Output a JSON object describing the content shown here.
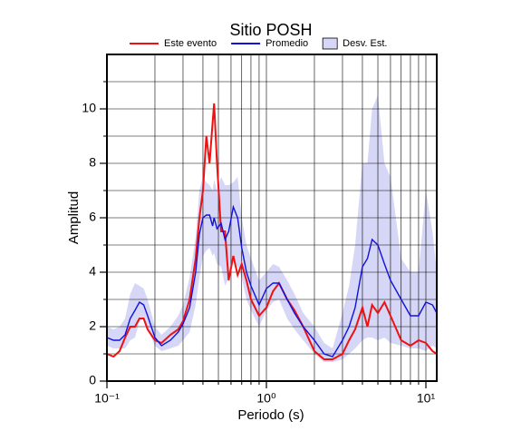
{
  "chart_data": {
    "type": "line",
    "title": "Sitio POSH",
    "x_label": "Periodo (s)",
    "y_label": "Amplitud",
    "xscale": "log",
    "xlim": [
      0.1,
      11.7
    ],
    "ylim": [
      0,
      12
    ],
    "xticks": [
      {
        "value": 0.1,
        "label": "10⁻¹"
      },
      {
        "value": 1,
        "label": "10⁰"
      },
      {
        "value": 10,
        "label": "10¹"
      }
    ],
    "xminorticks": [
      0.2,
      0.3,
      0.4,
      0.5,
      0.6,
      0.7,
      0.8,
      0.9,
      2,
      3,
      4,
      5,
      6,
      7,
      8,
      9
    ],
    "yticks": [
      0,
      2,
      4,
      6,
      8,
      10
    ],
    "yminorticks": [
      1,
      3,
      5,
      7,
      9,
      11
    ],
    "grid": true,
    "x": [
      0.1,
      0.11,
      0.12,
      0.13,
      0.14,
      0.15,
      0.16,
      0.17,
      0.18,
      0.2,
      0.22,
      0.25,
      0.28,
      0.3,
      0.33,
      0.36,
      0.38,
      0.4,
      0.42,
      0.44,
      0.46,
      0.47,
      0.49,
      0.52,
      0.55,
      0.58,
      0.62,
      0.66,
      0.7,
      0.75,
      0.8,
      0.9,
      1.0,
      1.1,
      1.2,
      1.35,
      1.5,
      1.7,
      2.0,
      2.3,
      2.6,
      3.0,
      3.3,
      3.6,
      4.0,
      4.3,
      4.6,
      5.0,
      5.5,
      6.0,
      7.0,
      8.0,
      9.0,
      10,
      11.0,
      11.7
    ],
    "band": {
      "name": "Desv. Est.",
      "color": "#d6d6f6",
      "upper": [
        2.0,
        1.9,
        2.0,
        2.3,
        3.2,
        3.6,
        3.5,
        3.4,
        3.0,
        2.0,
        1.7,
        2.0,
        2.4,
        2.8,
        3.8,
        5.3,
        7.0,
        7.5,
        7.3,
        7.2,
        7.0,
        7.4,
        7.0,
        7.5,
        7.2,
        7.2,
        7.3,
        7.5,
        6.0,
        5.0,
        4.5,
        3.7,
        4.0,
        4.3,
        4.2,
        3.7,
        3.2,
        2.5,
        2.0,
        1.4,
        1.2,
        2.5,
        3.5,
        5.0,
        8.0,
        8.0,
        10.0,
        10.5,
        8.0,
        7.5,
        4.5,
        4.0,
        4.0,
        7.0,
        5.5,
        4.0
      ],
      "lower": [
        1.3,
        1.2,
        1.2,
        1.2,
        1.5,
        1.6,
        2.2,
        2.3,
        1.9,
        1.3,
        1.1,
        1.2,
        1.3,
        1.5,
        1.8,
        2.8,
        3.8,
        4.6,
        4.8,
        4.9,
        4.6,
        4.7,
        4.3,
        4.2,
        3.5,
        3.8,
        4.5,
        4.2,
        3.8,
        3.0,
        2.6,
        2.0,
        2.6,
        2.9,
        3.0,
        2.3,
        1.9,
        1.5,
        1.0,
        0.7,
        0.7,
        0.8,
        1.0,
        1.2,
        1.5,
        1.6,
        1.6,
        1.5,
        1.6,
        1.4,
        1.3,
        1.2,
        1.2,
        1.1,
        1.3,
        1.2
      ]
    },
    "series": [
      {
        "name": "Este evento",
        "color": "#ee1111",
        "values": [
          1.0,
          0.9,
          1.1,
          1.6,
          2.0,
          2.0,
          2.3,
          2.3,
          1.9,
          1.5,
          1.4,
          1.7,
          1.9,
          2.2,
          3.0,
          4.5,
          6.0,
          7.0,
          9.0,
          8.0,
          9.5,
          10.2,
          8.0,
          5.5,
          5.5,
          3.7,
          4.6,
          3.9,
          4.3,
          3.7,
          3.0,
          2.4,
          2.7,
          3.3,
          3.6,
          3.0,
          2.6,
          2.0,
          1.1,
          0.8,
          0.8,
          1.0,
          1.5,
          1.9,
          2.7,
          2.0,
          2.8,
          2.5,
          2.9,
          2.4,
          1.5,
          1.3,
          1.5,
          1.4,
          1.1,
          1.0
        ]
      },
      {
        "name": "Promedio",
        "color": "#1111dd",
        "values": [
          1.6,
          1.5,
          1.5,
          1.7,
          2.3,
          2.6,
          2.9,
          2.8,
          2.4,
          1.6,
          1.3,
          1.5,
          1.8,
          2.1,
          2.7,
          4.0,
          5.4,
          6.0,
          6.1,
          6.1,
          5.7,
          6.0,
          5.6,
          5.8,
          5.2,
          5.5,
          6.4,
          6.0,
          4.9,
          4.0,
          3.5,
          2.8,
          3.4,
          3.6,
          3.6,
          3.0,
          2.5,
          2.0,
          1.5,
          1.0,
          0.9,
          1.5,
          2.0,
          2.7,
          4.2,
          4.5,
          5.2,
          5.0,
          4.3,
          3.7,
          3.0,
          2.4,
          2.4,
          2.9,
          2.8,
          2.5
        ]
      }
    ]
  }
}
